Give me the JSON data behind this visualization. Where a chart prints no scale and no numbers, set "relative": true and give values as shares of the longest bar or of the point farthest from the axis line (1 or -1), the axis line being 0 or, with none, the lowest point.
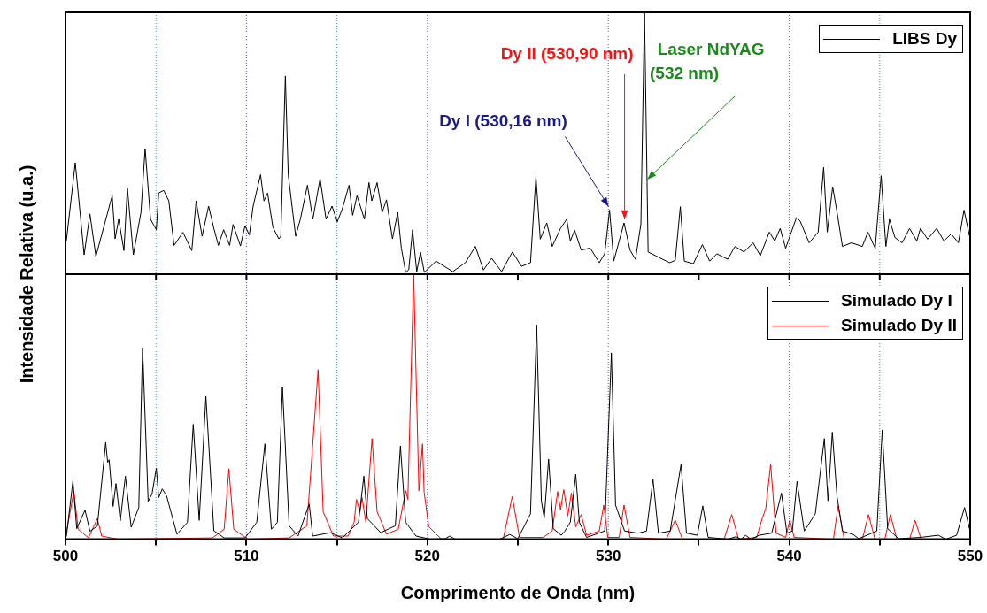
{
  "chart_data": [
    {
      "type": "line",
      "relative": true,
      "ylabel": "Intensidade Relativa (u.a.)",
      "xlim": [
        500,
        550
      ],
      "tick_labels": false,
      "legend": "top right",
      "ref_lines": [
        {
          "axis": "x",
          "value": 505,
          "color": "#20a0a0"
        },
        {
          "axis": "x",
          "value": 510,
          "color": "#5050ff"
        },
        {
          "axis": "x",
          "value": 515,
          "color": "#20a0a0"
        },
        {
          "axis": "x",
          "value": 520,
          "color": "#5050ff"
        },
        {
          "axis": "x",
          "value": 530,
          "color": "#5050ff"
        },
        {
          "axis": "x",
          "value": 540,
          "color": "#5050ff"
        },
        {
          "axis": "x",
          "value": 545,
          "color": "#20a0a0"
        }
      ],
      "annotations": [
        {
          "text": "Dy I (530,16 nm)",
          "x": 530.16,
          "y": 0.245
        },
        {
          "text": "Dy II (530,90 nm)",
          "x": 530.9,
          "y": 0.196
        },
        {
          "text": "Laser NdYAG\n(532 nm)",
          "x": 532,
          "y": 0.348
        }
      ],
      "series": [
        {
          "name": "LIBS Dy",
          "color": "#000000",
          "x": [
            500.05,
            500.54,
            501.03,
            501.35,
            501.68,
            502.58,
            502.74,
            502.94,
            503.23,
            503.42,
            503.75,
            504.17,
            504.4,
            504.7,
            505.02,
            505.15,
            505.43,
            505.71,
            506.0,
            506.49,
            506.98,
            507.22,
            507.55,
            507.91,
            508.2,
            508.45,
            508.74,
            509.07,
            509.26,
            509.67,
            509.92,
            510.16,
            510.37,
            510.78,
            510.97,
            511.17,
            511.46,
            511.79,
            511.9,
            512.15,
            512.31,
            512.72,
            512.98,
            513.37,
            513.67,
            514.07,
            514.4,
            514.73,
            515.02,
            515.3,
            515.67,
            515.87,
            516.11,
            516.52,
            516.77,
            516.93,
            517.22,
            517.5,
            517.74,
            518.07,
            518.36,
            518.56,
            518.8,
            518.97,
            519.18,
            519.41,
            519.62,
            519.83,
            520.48,
            521.4,
            522.1,
            522.65,
            523.1,
            523.55,
            524.1,
            524.7,
            525.2,
            525.7,
            526.0,
            526.24,
            526.6,
            526.9,
            527.36,
            527.7,
            527.9,
            528.14,
            528.5,
            529.0,
            529.5,
            529.8,
            530.07,
            530.3,
            530.87,
            531.2,
            531.5,
            531.8,
            532.0,
            532.2,
            532.6,
            533.0,
            533.4,
            533.7,
            533.98,
            534.2,
            534.7,
            535.2,
            535.6,
            536.0,
            536.6,
            537.0,
            537.5,
            538.0,
            538.4,
            538.9,
            539.2,
            539.5,
            539.8,
            540.4,
            540.6,
            541.1,
            541.6,
            541.9,
            542.1,
            542.4,
            542.64,
            542.94,
            543.44,
            544.04,
            544.35,
            544.75,
            545.08,
            545.34,
            545.54,
            545.84,
            546.24,
            546.65,
            547.05,
            547.25,
            547.65,
            548.15,
            548.55,
            548.95,
            549.35,
            549.66,
            549.96
          ],
          "values": [
            0.128,
            0.426,
            0.074,
            0.23,
            0.068,
            0.3,
            0.135,
            0.21,
            0.09,
            0.33,
            0.074,
            0.236,
            0.48,
            0.21,
            0.17,
            0.31,
            0.32,
            0.28,
            0.11,
            0.16,
            0.09,
            0.28,
            0.145,
            0.26,
            0.175,
            0.11,
            0.17,
            0.11,
            0.19,
            0.108,
            0.185,
            0.15,
            0.26,
            0.38,
            0.28,
            0.31,
            0.18,
            0.135,
            0.145,
            0.757,
            0.38,
            0.145,
            0.21,
            0.34,
            0.21,
            0.365,
            0.21,
            0.26,
            0.2,
            0.25,
            0.34,
            0.225,
            0.3,
            0.21,
            0.35,
            0.28,
            0.35,
            0.236,
            0.284,
            0.135,
            0.236,
            0.1,
            0.007,
            0.017,
            0.17,
            0.01,
            0.084,
            0.007,
            0.05,
            0.01,
            0.044,
            0.106,
            0.016,
            0.061,
            0.01,
            0.085,
            0.03,
            0.044,
            0.373,
            0.134,
            0.196,
            0.106,
            0.175,
            0.21,
            0.127,
            0.168,
            0.092,
            0.1,
            0.044,
            0.078,
            0.245,
            0.05,
            0.196,
            0.092,
            0.057,
            0.19,
            1,
            0.085,
            0.071,
            0.057,
            0.044,
            0.053,
            0.258,
            0.05,
            0.04,
            0.113,
            0.05,
            0.078,
            0.057,
            0.106,
            0.085,
            0.12,
            0.071,
            0.161,
            0.127,
            0.175,
            0.099,
            0.217,
            0.203,
            0.12,
            0.161,
            0.408,
            0.161,
            0.334,
            0.237,
            0.106,
            0.12,
            0.106,
            0.161,
            0.099,
            0.376,
            0.106,
            0.21,
            0.14,
            0.12,
            0.175,
            0.127,
            0.175,
            0.134,
            0.175,
            0.127,
            0.154,
            0.12,
            0.245,
            0.147
          ]
        }
      ]
    },
    {
      "type": "line",
      "relative": true,
      "xlabel": "Comprimento de Onda (nm)",
      "xlim": [
        500,
        550
      ],
      "xticks": [
        500,
        {
          "value": 505,
          "label": null
        },
        510,
        {
          "value": 515,
          "label": null
        },
        520,
        {
          "value": 525,
          "label": null
        },
        530,
        {
          "value": 535,
          "label": null
        },
        540,
        {
          "value": 545,
          "label": null
        },
        550
      ],
      "tick_labels": "x",
      "legend": "top right",
      "ref_lines": [
        {
          "axis": "x",
          "value": 505,
          "color": "#20a0a0"
        },
        {
          "axis": "x",
          "value": 510,
          "color": "#5050ff"
        },
        {
          "axis": "x",
          "value": 515,
          "color": "#20a0a0"
        },
        {
          "axis": "x",
          "value": 520,
          "color": "#5050ff"
        },
        {
          "axis": "x",
          "value": 530,
          "color": "#5050ff"
        },
        {
          "axis": "x",
          "value": 540,
          "color": "#5050ff"
        },
        {
          "axis": "x",
          "value": 545,
          "color": "#20a0a0"
        }
      ],
      "series": [
        {
          "name": "Simulado Dy I",
          "color": "#000000",
          "x": [
            500.05,
            500.41,
            500.62,
            501.08,
            501.35,
            501.76,
            502.22,
            502.33,
            502.41,
            502.63,
            502.79,
            503.03,
            503.31,
            503.63,
            504.05,
            504.26,
            504.57,
            504.78,
            505.02,
            505.15,
            505.35,
            505.59,
            506.16,
            506.74,
            507.06,
            507.39,
            507.76,
            508.2,
            508.77,
            509.92,
            510.57,
            511.02,
            511.38,
            511.71,
            511.99,
            512.36,
            512.85,
            513.47,
            513.66,
            514.64,
            515.3,
            515.79,
            516.19,
            516.49,
            516.68,
            517.42,
            518.23,
            518.51,
            518.8,
            519.37,
            520.18,
            520.98,
            521.24,
            521.54,
            524.0,
            524.55,
            525.0,
            525.7,
            526.04,
            526.3,
            526.46,
            526.7,
            526.96,
            527.4,
            527.6,
            527.9,
            528.2,
            528.4,
            528.8,
            529.8,
            530.17,
            530.4,
            530.9,
            531.65,
            532.11,
            532.47,
            532.77,
            533.42,
            534.02,
            534.32,
            534.92,
            535.22,
            535.52,
            536.62,
            537.06,
            537.33,
            537.59,
            537.87,
            538.33,
            539.03,
            539.57,
            539.87,
            540.17,
            540.43,
            540.83,
            541.44,
            541.94,
            542.14,
            542.38,
            542.64,
            542.94,
            543.54,
            543.84,
            544.84,
            545.14,
            545.44,
            546.05,
            547.25,
            548.25,
            548.65,
            549.25,
            549.69,
            549.96
          ],
          "values": [
            0.01,
            0.22,
            0.04,
            0.11,
            0.03,
            0.05,
            0.365,
            0.29,
            0.3,
            0.124,
            0.21,
            0.07,
            0.238,
            0.045,
            0.12,
            0.723,
            0.143,
            0.17,
            0.268,
            0.157,
            0.19,
            0.163,
            0.019,
            0.064,
            0.434,
            0.071,
            0.539,
            0.032,
            0.005,
            0.005,
            0.064,
            0.36,
            0.038,
            0.064,
            0.576,
            0.051,
            0.012,
            0.133,
            0.012,
            0.025,
            0.005,
            0.038,
            0.064,
            0.238,
            0.078,
            0.025,
            0.051,
            0.352,
            0.064,
            0.012,
            0,
            0.002,
            0.012,
            0,
            0,
            0.018,
            0.002,
            0.096,
            0.809,
            0.145,
            0.08,
            0.302,
            0.04,
            0.015,
            0.031,
            0.064,
            0.245,
            0.064,
            0.007,
            0.031,
            0.703,
            0.129,
            0.031,
            0.023,
            0.031,
            0.226,
            0.023,
            0.031,
            0.282,
            0.023,
            0.015,
            0.126,
            0.007,
            0,
            0.01,
            0,
            0.015,
            0,
            0.015,
            0.023,
            0.174,
            0.023,
            0.031,
            0.218,
            0.031,
            0.096,
            0.38,
            0.145,
            0.404,
            0.161,
            0.031,
            0.018,
            0.002,
            0.031,
            0.412,
            0.04,
            0.002,
            0.007,
            0.015,
            0,
            0.015,
            0.12,
            0.04
          ]
        },
        {
          "name": "Simulado Dy II",
          "color": "#ff0000",
          "x": [
            500.05,
            500.46,
            500.7,
            501.27,
            501.76,
            502.0,
            502.9,
            508.12,
            508.77,
            509.03,
            509.3,
            510.08,
            512.36,
            513.34,
            513.96,
            514.24,
            514.81,
            515.62,
            515.95,
            516.08,
            516.28,
            516.39,
            516.6,
            516.94,
            517.22,
            517.74,
            518.39,
            518.8,
            518.92,
            519.24,
            519.53,
            519.73,
            519.82,
            520.08,
            520.78,
            524.19,
            524.69,
            525.09,
            526.4,
            526.9,
            527.2,
            527.36,
            527.54,
            527.76,
            527.96,
            528.2,
            528.5,
            528.8,
            529.5,
            529.75,
            529.97,
            530.6,
            530.87,
            531.2,
            533.2,
            533.7,
            534.1,
            536.4,
            536.82,
            537.2,
            538.2,
            538.5,
            538.7,
            538.97,
            539.27,
            539.8,
            540.03,
            540.27,
            542.44,
            542.7,
            543.04,
            544.04,
            544.38,
            544.74,
            545.28,
            545.59,
            545.95,
            546.65,
            546.95,
            547.29
          ],
          "values": [
            0.025,
            0.18,
            0.038,
            0.005,
            0.078,
            0.012,
            0,
            0.005,
            0.038,
            0.266,
            0.038,
            0,
            0.005,
            0.051,
            0.64,
            0.104,
            0.012,
            0.012,
            0.064,
            0.15,
            0.104,
            0.157,
            0.064,
            0.38,
            0.104,
            0.019,
            0.038,
            0.183,
            0.15,
            1,
            0.183,
            0.36,
            0.177,
            0.047,
            0,
            0,
            0.161,
            0.007,
            0.007,
            0.031,
            0.18,
            0.112,
            0.187,
            0.088,
            0.174,
            0.047,
            0.093,
            0.015,
            0.031,
            0.129,
            0.007,
            0.007,
            0.129,
            0.007,
            0,
            0.072,
            0,
            0,
            0.093,
            0,
            0.007,
            0.077,
            0.116,
            0.282,
            0.023,
            0.007,
            0.072,
            0.007,
            0,
            0.126,
            0,
            0,
            0.093,
            0,
            0,
            0.093,
            0,
            0,
            0.072,
            0
          ]
        }
      ]
    }
  ]
}
